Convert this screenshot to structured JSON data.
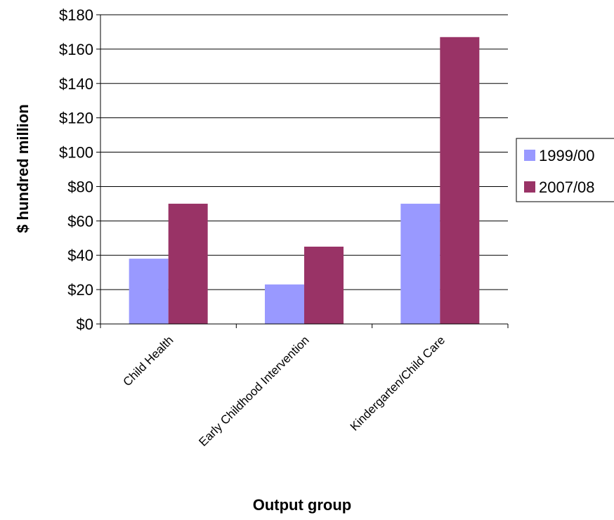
{
  "chart_data": {
    "type": "bar",
    "categories": [
      "Child Health",
      "Early Childhood  Intervention",
      "Kindergarten/Child Care"
    ],
    "series": [
      {
        "name": "1999/00",
        "values": [
          38,
          23,
          70
        ],
        "color": "#9999ff"
      },
      {
        "name": "2007/08",
        "values": [
          70,
          45,
          167
        ],
        "color": "#993366"
      }
    ],
    "xlabel": "Output group",
    "ylabel": "$ hundred million",
    "ylim": [
      0,
      180
    ],
    "yticks": [
      0,
      20,
      40,
      60,
      80,
      100,
      120,
      140,
      160,
      180
    ],
    "ytick_labels": [
      "$0",
      "$20",
      "$40",
      "$60",
      "$80",
      "$100",
      "$120",
      "$140",
      "$160",
      "$180"
    ],
    "grid": "horizontal major gridlines",
    "legend": "right"
  }
}
